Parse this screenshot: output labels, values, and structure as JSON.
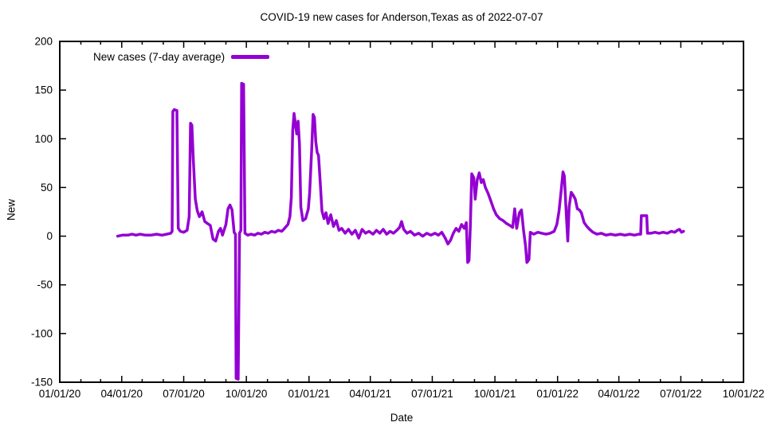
{
  "title": "COVID-19 new cases for Anderson,Texas as of 2022-07-07",
  "legend": {
    "label": "New cases (7-day average)"
  },
  "colors": {
    "line": "#9400D3",
    "axis": "#000000",
    "background": "#ffffff"
  },
  "chart_data": {
    "type": "line",
    "title": "COVID-19 new cases for Anderson,Texas as of 2022-07-07",
    "xlabel": "Date",
    "ylabel": "New",
    "xlim": [
      "2020-01-01",
      "2022-10-01"
    ],
    "ylim": [
      -150,
      200
    ],
    "grid": false,
    "legend_position": "top-left-inside",
    "xticks": [
      {
        "date": "2020-01-01",
        "label": "01/01/20"
      },
      {
        "date": "2020-04-01",
        "label": "04/01/20"
      },
      {
        "date": "2020-07-01",
        "label": "07/01/20"
      },
      {
        "date": "2020-10-01",
        "label": "10/01/20"
      },
      {
        "date": "2021-01-01",
        "label": "01/01/21"
      },
      {
        "date": "2021-04-01",
        "label": "04/01/21"
      },
      {
        "date": "2021-07-01",
        "label": "07/01/21"
      },
      {
        "date": "2021-10-01",
        "label": "10/01/21"
      },
      {
        "date": "2022-01-01",
        "label": "01/01/22"
      },
      {
        "date": "2022-04-01",
        "label": "04/01/22"
      },
      {
        "date": "2022-07-01",
        "label": "07/01/22"
      },
      {
        "date": "2022-10-01",
        "label": "10/01/22"
      }
    ],
    "minor_xtick_unit": "month",
    "yticks": [
      {
        "v": -150,
        "label": "-150"
      },
      {
        "v": -100,
        "label": "-100"
      },
      {
        "v": -50,
        "label": "-50"
      },
      {
        "v": 0,
        "label": "0"
      },
      {
        "v": 50,
        "label": "50"
      },
      {
        "v": 100,
        "label": "100"
      },
      {
        "v": 150,
        "label": "150"
      },
      {
        "v": 200,
        "label": "200"
      }
    ],
    "series": [
      {
        "name": "New cases (7-day average)",
        "color": "#9400D3",
        "line_width": 3.5,
        "points": [
          [
            "2020-03-26",
            0
          ],
          [
            "2020-04-02",
            1
          ],
          [
            "2020-04-10",
            1
          ],
          [
            "2020-04-16",
            2
          ],
          [
            "2020-04-22",
            1
          ],
          [
            "2020-04-28",
            2
          ],
          [
            "2020-05-06",
            1
          ],
          [
            "2020-05-14",
            1
          ],
          [
            "2020-05-22",
            2
          ],
          [
            "2020-05-30",
            1
          ],
          [
            "2020-06-06",
            2
          ],
          [
            "2020-06-12",
            3
          ],
          [
            "2020-06-14",
            5
          ],
          [
            "2020-06-15",
            128
          ],
          [
            "2020-06-17",
            130
          ],
          [
            "2020-06-21",
            129
          ],
          [
            "2020-06-23",
            8
          ],
          [
            "2020-06-26",
            5
          ],
          [
            "2020-07-01",
            4
          ],
          [
            "2020-07-06",
            6
          ],
          [
            "2020-07-09",
            20
          ],
          [
            "2020-07-11",
            116
          ],
          [
            "2020-07-13",
            114
          ],
          [
            "2020-07-15",
            80
          ],
          [
            "2020-07-18",
            38
          ],
          [
            "2020-07-21",
            26
          ],
          [
            "2020-07-24",
            20
          ],
          [
            "2020-07-28",
            25
          ],
          [
            "2020-08-01",
            15
          ],
          [
            "2020-08-05",
            13
          ],
          [
            "2020-08-09",
            11
          ],
          [
            "2020-08-13",
            -3
          ],
          [
            "2020-08-17",
            -5
          ],
          [
            "2020-08-21",
            5
          ],
          [
            "2020-08-24",
            8
          ],
          [
            "2020-08-27",
            1
          ],
          [
            "2020-09-01",
            12
          ],
          [
            "2020-09-04",
            28
          ],
          [
            "2020-09-07",
            32
          ],
          [
            "2020-09-10",
            27
          ],
          [
            "2020-09-13",
            4
          ],
          [
            "2020-09-15",
            2
          ],
          [
            "2020-09-16",
            -146
          ],
          [
            "2020-09-19",
            -147
          ],
          [
            "2020-09-21",
            3
          ],
          [
            "2020-09-23",
            6
          ],
          [
            "2020-09-24",
            157
          ],
          [
            "2020-09-27",
            156
          ],
          [
            "2020-09-29",
            3
          ],
          [
            "2020-10-03",
            1
          ],
          [
            "2020-10-08",
            2
          ],
          [
            "2020-10-13",
            1
          ],
          [
            "2020-10-18",
            3
          ],
          [
            "2020-10-23",
            2
          ],
          [
            "2020-10-28",
            4
          ],
          [
            "2020-11-02",
            3
          ],
          [
            "2020-11-07",
            5
          ],
          [
            "2020-11-12",
            4
          ],
          [
            "2020-11-17",
            6
          ],
          [
            "2020-11-22",
            5
          ],
          [
            "2020-11-26",
            8
          ],
          [
            "2020-12-01",
            12
          ],
          [
            "2020-12-04",
            20
          ],
          [
            "2020-12-06",
            40
          ],
          [
            "2020-12-08",
            108
          ],
          [
            "2020-12-10",
            126
          ],
          [
            "2020-12-12",
            115
          ],
          [
            "2020-12-14",
            105
          ],
          [
            "2020-12-16",
            118
          ],
          [
            "2020-12-18",
            95
          ],
          [
            "2020-12-20",
            30
          ],
          [
            "2020-12-23",
            16
          ],
          [
            "2020-12-27",
            18
          ],
          [
            "2020-12-31",
            28
          ],
          [
            "2021-01-02",
            45
          ],
          [
            "2021-01-05",
            90
          ],
          [
            "2021-01-07",
            125
          ],
          [
            "2021-01-09",
            122
          ],
          [
            "2021-01-11",
            97
          ],
          [
            "2021-01-13",
            86
          ],
          [
            "2021-01-15",
            83
          ],
          [
            "2021-01-17",
            60
          ],
          [
            "2021-01-20",
            26
          ],
          [
            "2021-01-23",
            18
          ],
          [
            "2021-01-26",
            24
          ],
          [
            "2021-01-29",
            13
          ],
          [
            "2021-02-02",
            22
          ],
          [
            "2021-02-06",
            10
          ],
          [
            "2021-02-10",
            16
          ],
          [
            "2021-02-14",
            6
          ],
          [
            "2021-02-18",
            8
          ],
          [
            "2021-02-23",
            3
          ],
          [
            "2021-02-28",
            7
          ],
          [
            "2021-03-05",
            2
          ],
          [
            "2021-03-10",
            6
          ],
          [
            "2021-03-15",
            -2
          ],
          [
            "2021-03-20",
            7
          ],
          [
            "2021-03-25",
            3
          ],
          [
            "2021-03-30",
            5
          ],
          [
            "2021-04-05",
            2
          ],
          [
            "2021-04-10",
            6
          ],
          [
            "2021-04-15",
            3
          ],
          [
            "2021-04-20",
            7
          ],
          [
            "2021-04-25",
            2
          ],
          [
            "2021-04-30",
            5
          ],
          [
            "2021-05-05",
            3
          ],
          [
            "2021-05-10",
            6
          ],
          [
            "2021-05-14",
            9
          ],
          [
            "2021-05-17",
            15
          ],
          [
            "2021-05-20",
            7
          ],
          [
            "2021-05-25",
            3
          ],
          [
            "2021-05-30",
            5
          ],
          [
            "2021-06-05",
            1
          ],
          [
            "2021-06-11",
            3
          ],
          [
            "2021-06-17",
            0
          ],
          [
            "2021-06-23",
            3
          ],
          [
            "2021-06-29",
            1
          ],
          [
            "2021-07-05",
            3
          ],
          [
            "2021-07-10",
            1
          ],
          [
            "2021-07-15",
            4
          ],
          [
            "2021-07-20",
            -2
          ],
          [
            "2021-07-24",
            -8
          ],
          [
            "2021-07-28",
            -4
          ],
          [
            "2021-08-01",
            3
          ],
          [
            "2021-08-05",
            8
          ],
          [
            "2021-08-09",
            5
          ],
          [
            "2021-08-13",
            12
          ],
          [
            "2021-08-17",
            8
          ],
          [
            "2021-08-20",
            14
          ],
          [
            "2021-08-22",
            -27
          ],
          [
            "2021-08-24",
            -25
          ],
          [
            "2021-08-26",
            12
          ],
          [
            "2021-08-28",
            64
          ],
          [
            "2021-08-31",
            60
          ],
          [
            "2021-09-02",
            38
          ],
          [
            "2021-09-05",
            58
          ],
          [
            "2021-09-08",
            65
          ],
          [
            "2021-09-11",
            55
          ],
          [
            "2021-09-14",
            58
          ],
          [
            "2021-09-17",
            50
          ],
          [
            "2021-09-21",
            44
          ],
          [
            "2021-09-25",
            36
          ],
          [
            "2021-09-29",
            28
          ],
          [
            "2021-10-03",
            22
          ],
          [
            "2021-10-08",
            18
          ],
          [
            "2021-10-13",
            16
          ],
          [
            "2021-10-18",
            13
          ],
          [
            "2021-10-23",
            11
          ],
          [
            "2021-10-27",
            9
          ],
          [
            "2021-10-30",
            28
          ],
          [
            "2021-11-02",
            8
          ],
          [
            "2021-11-06",
            24
          ],
          [
            "2021-11-09",
            27
          ],
          [
            "2021-11-12",
            6
          ],
          [
            "2021-11-15",
            -10
          ],
          [
            "2021-11-17",
            -27
          ],
          [
            "2021-11-20",
            -24
          ],
          [
            "2021-11-22",
            4
          ],
          [
            "2021-11-27",
            2
          ],
          [
            "2021-12-03",
            4
          ],
          [
            "2021-12-09",
            3
          ],
          [
            "2021-12-15",
            2
          ],
          [
            "2021-12-21",
            3
          ],
          [
            "2021-12-27",
            5
          ],
          [
            "2021-12-31",
            12
          ],
          [
            "2022-01-03",
            25
          ],
          [
            "2022-01-06",
            45
          ],
          [
            "2022-01-09",
            66
          ],
          [
            "2022-01-11",
            62
          ],
          [
            "2022-01-14",
            20
          ],
          [
            "2022-01-16",
            -5
          ],
          [
            "2022-01-18",
            30
          ],
          [
            "2022-01-21",
            45
          ],
          [
            "2022-01-24",
            42
          ],
          [
            "2022-01-27",
            38
          ],
          [
            "2022-01-30",
            28
          ],
          [
            "2022-02-02",
            27
          ],
          [
            "2022-02-05",
            24
          ],
          [
            "2022-02-09",
            14
          ],
          [
            "2022-02-13",
            10
          ],
          [
            "2022-02-17",
            7
          ],
          [
            "2022-02-22",
            4
          ],
          [
            "2022-02-28",
            2
          ],
          [
            "2022-03-06",
            3
          ],
          [
            "2022-03-13",
            1
          ],
          [
            "2022-03-20",
            2
          ],
          [
            "2022-03-27",
            1
          ],
          [
            "2022-04-03",
            2
          ],
          [
            "2022-04-10",
            1
          ],
          [
            "2022-04-17",
            2
          ],
          [
            "2022-04-24",
            1
          ],
          [
            "2022-04-30",
            2
          ],
          [
            "2022-05-03",
            2
          ],
          [
            "2022-05-04",
            21
          ],
          [
            "2022-05-12",
            21
          ],
          [
            "2022-05-13",
            3
          ],
          [
            "2022-05-18",
            3
          ],
          [
            "2022-05-24",
            4
          ],
          [
            "2022-05-30",
            3
          ],
          [
            "2022-06-05",
            4
          ],
          [
            "2022-06-11",
            3
          ],
          [
            "2022-06-17",
            5
          ],
          [
            "2022-06-22",
            4
          ],
          [
            "2022-06-26",
            6
          ],
          [
            "2022-06-29",
            7
          ],
          [
            "2022-07-02",
            4
          ],
          [
            "2022-07-05",
            5
          ]
        ]
      }
    ]
  }
}
